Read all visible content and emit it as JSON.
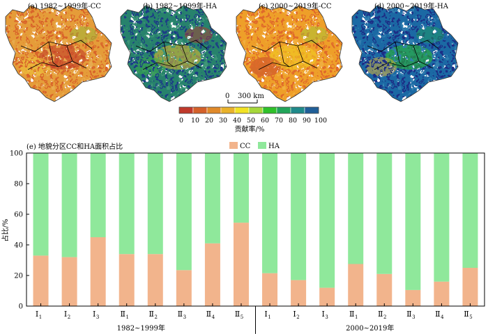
{
  "maps": {
    "panels": [
      {
        "label": "(a) 1982~1999年-CC",
        "scheme": "cc-early"
      },
      {
        "label": "(b) 1982~1999年-HA",
        "scheme": "ha-early"
      },
      {
        "label": "(c) 2000~2019年-CC",
        "scheme": "cc-late"
      },
      {
        "label": "(d) 2000~2019年-HA",
        "scheme": "ha-late"
      }
    ],
    "scalebar_ticks": [
      "0",
      "300 km"
    ]
  },
  "colorbar": {
    "ticks": [
      "0",
      "10",
      "20",
      "30",
      "40",
      "50",
      "60",
      "70",
      "80",
      "90",
      "100"
    ],
    "colors": [
      "#c0392b",
      "#d4612a",
      "#e08a2a",
      "#e9b22b",
      "#f2e224",
      "#a6d83a",
      "#2fc12a",
      "#22a55a",
      "#1f8a8a",
      "#205f98",
      "#1a2e86"
    ],
    "label": "贡献率/%"
  },
  "chart_data": {
    "type": "bar",
    "stacked": true,
    "title": "(e) 地貌分区CC和HA面积占比",
    "xlabel": "",
    "ylabel": "占比/%",
    "ylim": [
      0,
      100
    ],
    "yticks": [
      "0",
      "20",
      "40",
      "60",
      "80",
      "100"
    ],
    "legend_position": "top-center",
    "categories": [
      {
        "roman": "Ⅰ",
        "sub": "1"
      },
      {
        "roman": "Ⅰ",
        "sub": "2"
      },
      {
        "roman": "Ⅰ",
        "sub": "3"
      },
      {
        "roman": "Ⅱ",
        "sub": "1"
      },
      {
        "roman": "Ⅱ",
        "sub": "2"
      },
      {
        "roman": "Ⅱ",
        "sub": "3"
      },
      {
        "roman": "Ⅱ",
        "sub": "4"
      },
      {
        "roman": "Ⅱ",
        "sub": "5"
      },
      {
        "roman": "Ⅰ",
        "sub": "1"
      },
      {
        "roman": "Ⅰ",
        "sub": "2"
      },
      {
        "roman": "Ⅰ",
        "sub": "3"
      },
      {
        "roman": "Ⅱ",
        "sub": "1"
      },
      {
        "roman": "Ⅱ",
        "sub": "2"
      },
      {
        "roman": "Ⅱ",
        "sub": "3"
      },
      {
        "roman": "Ⅱ",
        "sub": "4"
      },
      {
        "roman": "Ⅱ",
        "sub": "5"
      }
    ],
    "groups": [
      {
        "label": "1982~1999年",
        "count": 8
      },
      {
        "label": "2000~2019年",
        "count": 8
      }
    ],
    "series": [
      {
        "name": "CC",
        "color": "#f2b48c",
        "values": [
          33,
          32,
          45,
          34,
          34,
          23.5,
          41,
          54.5,
          21.5,
          17,
          12,
          27.5,
          21,
          10.5,
          16,
          25
        ]
      },
      {
        "name": "HA",
        "color": "#8fe89b",
        "values": [
          67,
          68,
          55,
          66,
          66,
          76.5,
          59,
          45.5,
          78.5,
          83,
          88,
          72.5,
          79,
          89.5,
          84,
          75
        ]
      }
    ]
  }
}
